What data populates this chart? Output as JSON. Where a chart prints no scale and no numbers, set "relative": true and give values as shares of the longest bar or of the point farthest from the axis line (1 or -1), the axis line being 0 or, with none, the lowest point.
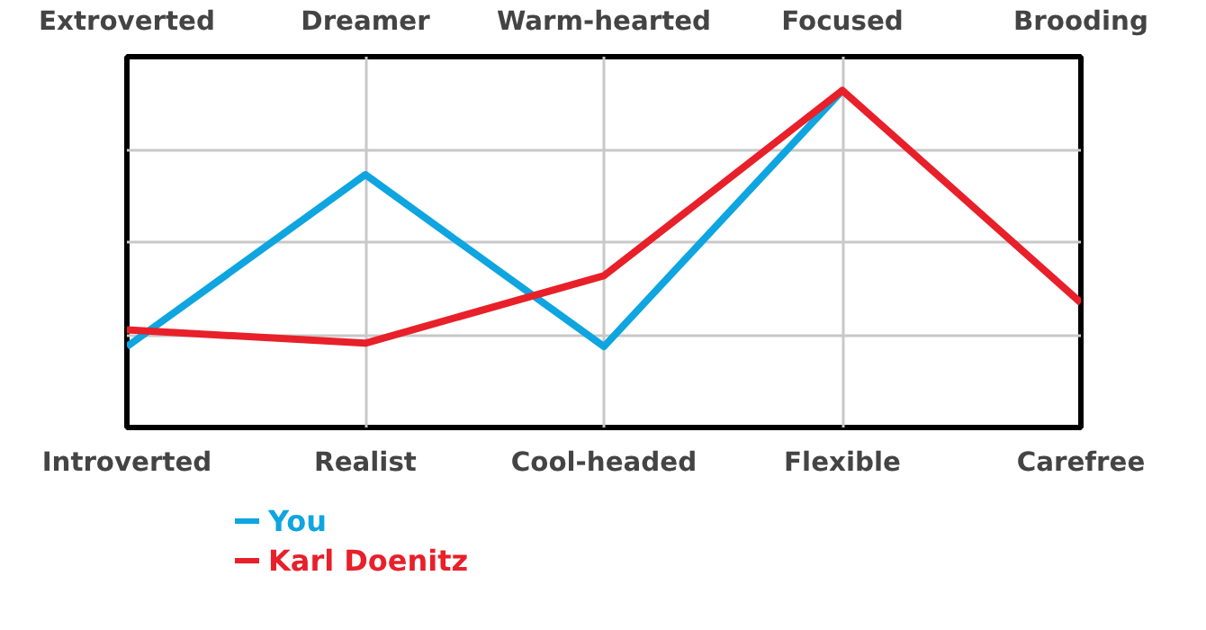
{
  "chart_data": {
    "type": "line",
    "relative": true,
    "grid": true,
    "legend": "bottom",
    "categories": [
      "Introverted",
      "Realist",
      "Cool-headed",
      "Flexible",
      "Carefree"
    ],
    "annotations": [
      "Extroverted",
      "Dreamer",
      "Warm-hearted",
      "Focused",
      "Brooding"
    ],
    "series": [
      {
        "name": "You",
        "color": "#0ea5e0",
        "values": [
          0.24,
          0.75,
          0.24,
          1,
          null
        ]
      },
      {
        "name": "Karl Doenitz",
        "color": "#e8202a",
        "values": [
          0.29,
          0.25,
          0.45,
          1,
          0.37
        ]
      }
    ]
  }
}
